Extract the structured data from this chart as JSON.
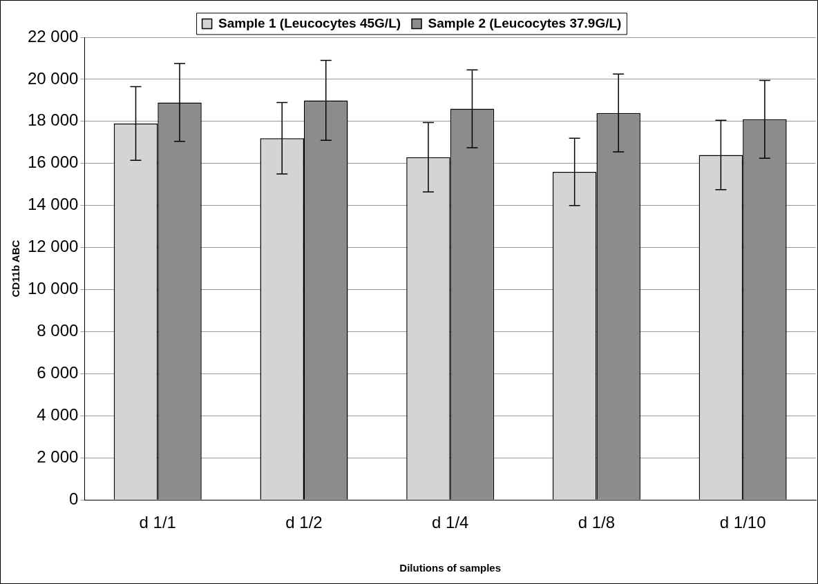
{
  "chart_data": {
    "type": "bar",
    "xlabel": "Dilutions of samples",
    "ylabel": "CD11b ABC",
    "categories": [
      "d 1/1",
      "d 1/2",
      "d 1/4",
      "d 1/8",
      "d 1/10"
    ],
    "series": [
      {
        "name": "Sample 1 (Leucocytes 45G/L)",
        "color": "#d4d4d4",
        "values": [
          17900,
          17200,
          16300,
          15600,
          16400
        ],
        "errors": [
          1750,
          1700,
          1650,
          1600,
          1650
        ]
      },
      {
        "name": "Sample 2 (Leucocytes 37.9G/L)",
        "color": "#8c8c8c",
        "values": [
          18900,
          19000,
          18600,
          18400,
          18100
        ],
        "errors": [
          1850,
          1900,
          1850,
          1850,
          1850
        ]
      }
    ],
    "ylim": [
      0,
      22000
    ],
    "yticks": [
      {
        "value": 0,
        "label": "0"
      },
      {
        "value": 2000,
        "label": "2 000"
      },
      {
        "value": 4000,
        "label": "4 000"
      },
      {
        "value": 6000,
        "label": "6 000"
      },
      {
        "value": 8000,
        "label": "8 000"
      },
      {
        "value": 10000,
        "label": "10 000"
      },
      {
        "value": 12000,
        "label": "12 000"
      },
      {
        "value": 14000,
        "label": "14 000"
      },
      {
        "value": 16000,
        "label": "16 000"
      },
      {
        "value": 18000,
        "label": "18 000"
      },
      {
        "value": 20000,
        "label": "20 000"
      },
      {
        "value": 22000,
        "label": "22 000"
      }
    ],
    "grid": "y",
    "legend": "top"
  }
}
